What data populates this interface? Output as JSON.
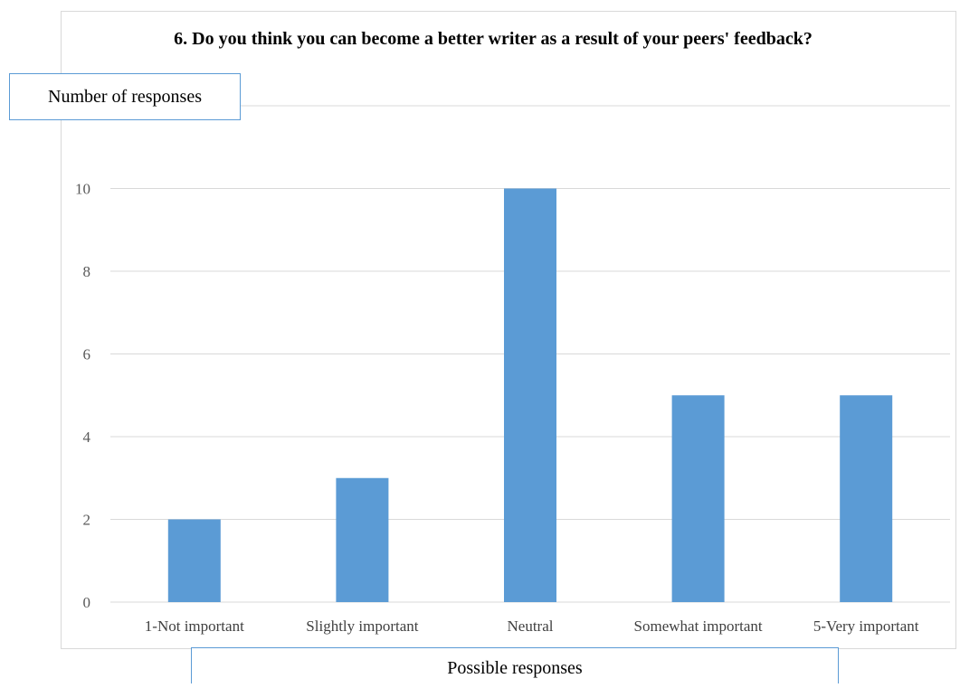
{
  "chart_data": {
    "type": "bar",
    "title": "6. Do you think you can become a better writer as a result of your peers' feedback?",
    "xlabel": "Possible responses",
    "ylabel": "Number of responses",
    "categories": [
      "1-Not important",
      "Slightly important",
      "Neutral",
      "Somewhat important",
      "5-Very important"
    ],
    "values": [
      2,
      3,
      10,
      5,
      5
    ],
    "ylim": [
      0,
      12
    ],
    "yticks": [
      0,
      2,
      4,
      6,
      8,
      10
    ],
    "grid": true,
    "bar_color": "#5b9bd5",
    "grid_color": "#d9d9d9"
  }
}
